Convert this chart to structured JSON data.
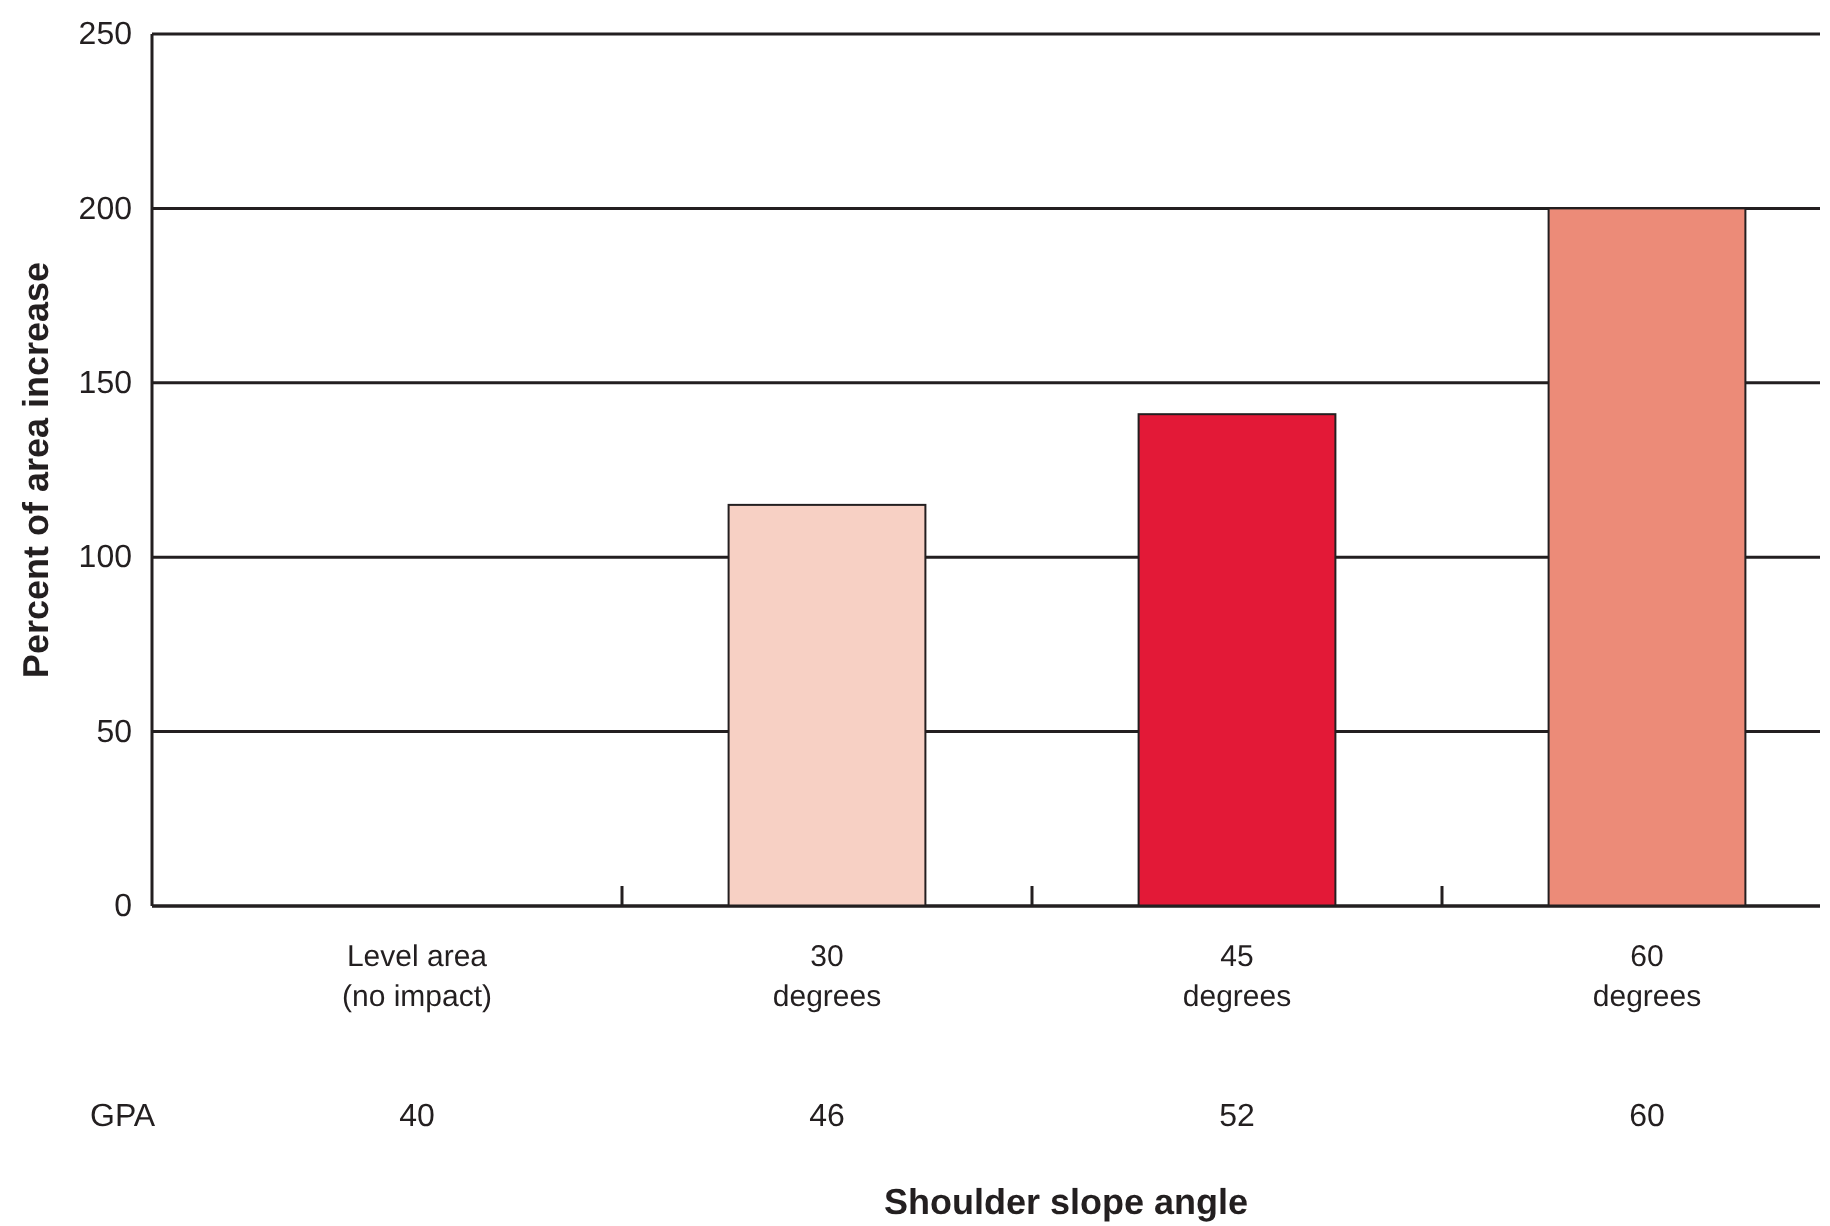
{
  "chart_data": {
    "type": "bar",
    "xlabel": "Shoulder slope angle",
    "ylabel": "Percent of area increase",
    "categories": [
      "Level area\n(no impact)",
      "30\ndegrees",
      "45\ndegrees",
      "60\ndegrees"
    ],
    "values": [
      0,
      115,
      141,
      200
    ],
    "colors": [
      "#f7d0c4",
      "#f7d0c4",
      "#e31937",
      "#ec8b78"
    ],
    "ylim": [
      0,
      250
    ],
    "yticks": [
      0,
      50,
      100,
      150,
      200,
      250
    ],
    "grid": "y",
    "annotations": [
      "GPA",
      "40",
      "46",
      "52",
      "60"
    ]
  }
}
